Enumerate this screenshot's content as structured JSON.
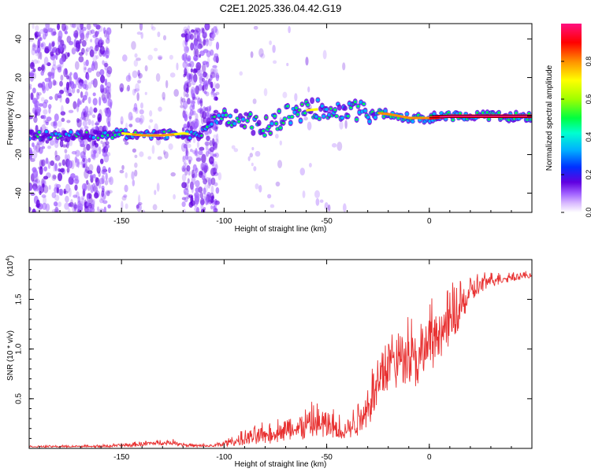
{
  "title": "C2E1.2025.336.04.42.G19",
  "chart_data": [
    {
      "type": "heatmap",
      "title": "C2E1.2025.336.04.42.G19",
      "xlabel": "Height of straight line (km)",
      "ylabel": "Frequency (Hz)",
      "xlim": [
        -195,
        50
      ],
      "ylim": [
        -50,
        48
      ],
      "xticks": [
        -150,
        -100,
        -50,
        0
      ],
      "yticks": [
        -40,
        -20,
        0,
        20,
        40
      ],
      "colorbar": {
        "label": "Normalized spectral amplitude",
        "range": [
          0,
          1
        ],
        "ticks": [
          "0.0",
          "0.2",
          "0.4",
          "0.6",
          "0.8"
        ],
        "colors": [
          "#ffffff",
          "#a060ff",
          "#6000e0",
          "#0030ff",
          "#00b0ff",
          "#00ffd0",
          "#00ff40",
          "#a0ff00",
          "#ffff00",
          "#ff9000",
          "#ff0000",
          "#ff1080"
        ]
      },
      "ridge": [
        {
          "x": -195,
          "y": -10
        },
        {
          "x": -180,
          "y": -10
        },
        {
          "x": -160,
          "y": -10
        },
        {
          "x": -150,
          "y": -9
        },
        {
          "x": -140,
          "y": -10
        },
        {
          "x": -130,
          "y": -10
        },
        {
          "x": -120,
          "y": -9
        },
        {
          "x": -112,
          "y": -10
        },
        {
          "x": -105,
          "y": -2
        },
        {
          "x": -100,
          "y": -1
        },
        {
          "x": -90,
          "y": -3
        },
        {
          "x": -80,
          "y": -6
        },
        {
          "x": -70,
          "y": 0
        },
        {
          "x": -60,
          "y": 3
        },
        {
          "x": -50,
          "y": 4
        },
        {
          "x": -40,
          "y": 3
        },
        {
          "x": -30,
          "y": 2
        },
        {
          "x": -20,
          "y": 1
        },
        {
          "x": -10,
          "y": -1
        },
        {
          "x": 0,
          "y": -1
        },
        {
          "x": 10,
          "y": 0
        },
        {
          "x": 20,
          "y": 0
        },
        {
          "x": 30,
          "y": 0
        },
        {
          "x": 50,
          "y": 0
        }
      ]
    },
    {
      "type": "line",
      "xlabel": "Height of straight line (km)",
      "ylabel": "SNR (10 * v/v)",
      "multiplier": "(x10",
      "multiplier_exp": "4",
      "multiplier_close": ")",
      "xlim": [
        -195,
        50
      ],
      "ylim": [
        0,
        1.9
      ],
      "xticks": [
        -150,
        -100,
        -50,
        0
      ],
      "yticks": [
        {
          "value": 0.5,
          "label": "0.5"
        },
        {
          "value": 1.0,
          "label": "1.0"
        },
        {
          "value": 1.5,
          "label": "1.5"
        }
      ],
      "color": "#e83030",
      "envelope": [
        {
          "x": -195,
          "lo": 0.01,
          "hi": 0.03
        },
        {
          "x": -160,
          "lo": 0.01,
          "hi": 0.04
        },
        {
          "x": -145,
          "lo": 0.01,
          "hi": 0.07
        },
        {
          "x": -135,
          "lo": 0.03,
          "hi": 0.09
        },
        {
          "x": -125,
          "lo": 0.03,
          "hi": 0.1
        },
        {
          "x": -115,
          "lo": 0.01,
          "hi": 0.05
        },
        {
          "x": -105,
          "lo": 0.01,
          "hi": 0.05
        },
        {
          "x": -95,
          "lo": 0.02,
          "hi": 0.15
        },
        {
          "x": -85,
          "lo": 0.03,
          "hi": 0.25
        },
        {
          "x": -75,
          "lo": 0.05,
          "hi": 0.32
        },
        {
          "x": -65,
          "lo": 0.06,
          "hi": 0.42
        },
        {
          "x": -55,
          "lo": 0.08,
          "hi": 0.52
        },
        {
          "x": -45,
          "lo": 0.06,
          "hi": 0.42
        },
        {
          "x": -40,
          "lo": 0.06,
          "hi": 0.38
        },
        {
          "x": -35,
          "lo": 0.1,
          "hi": 0.55
        },
        {
          "x": -30,
          "lo": 0.2,
          "hi": 0.8
        },
        {
          "x": -25,
          "lo": 0.4,
          "hi": 1.1
        },
        {
          "x": -20,
          "lo": 0.55,
          "hi": 1.4
        },
        {
          "x": -15,
          "lo": 0.6,
          "hi": 1.3
        },
        {
          "x": -10,
          "lo": 0.65,
          "hi": 1.55
        },
        {
          "x": -5,
          "lo": 0.6,
          "hi": 1.35
        },
        {
          "x": 0,
          "lo": 0.75,
          "hi": 1.55
        },
        {
          "x": 5,
          "lo": 0.85,
          "hi": 1.6
        },
        {
          "x": 10,
          "lo": 1.0,
          "hi": 1.7
        },
        {
          "x": 15,
          "lo": 1.2,
          "hi": 1.8
        },
        {
          "x": 20,
          "lo": 1.4,
          "hi": 1.8
        },
        {
          "x": 25,
          "lo": 1.55,
          "hi": 1.8
        },
        {
          "x": 30,
          "lo": 1.62,
          "hi": 1.8
        },
        {
          "x": 40,
          "lo": 1.68,
          "hi": 1.8
        },
        {
          "x": 50,
          "lo": 1.7,
          "hi": 1.8
        }
      ]
    }
  ]
}
